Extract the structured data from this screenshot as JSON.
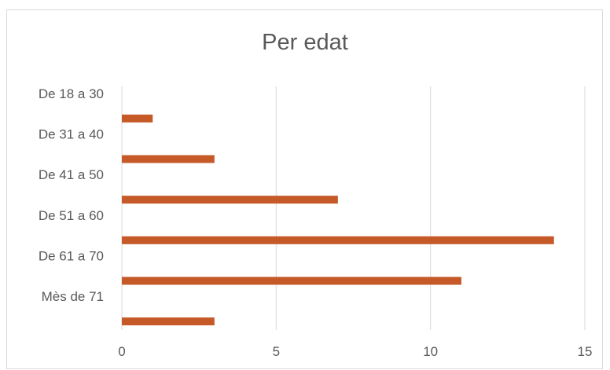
{
  "chart_data": {
    "type": "bar",
    "orientation": "horizontal",
    "title": "Per edat",
    "categories": [
      "De 18 a 30",
      "De 31 a 40",
      "De 41 a 50",
      "De 51 a 60",
      "De 61 a 70",
      "Mès de 71"
    ],
    "values": [
      1,
      3,
      7,
      14,
      11,
      3
    ],
    "xlim": [
      0,
      15
    ],
    "xticks": [
      0,
      5,
      10,
      15
    ],
    "grid": "vertical",
    "bar_color": "#C55A28",
    "gridline_color": "#D9D9D9",
    "legend": "none"
  }
}
